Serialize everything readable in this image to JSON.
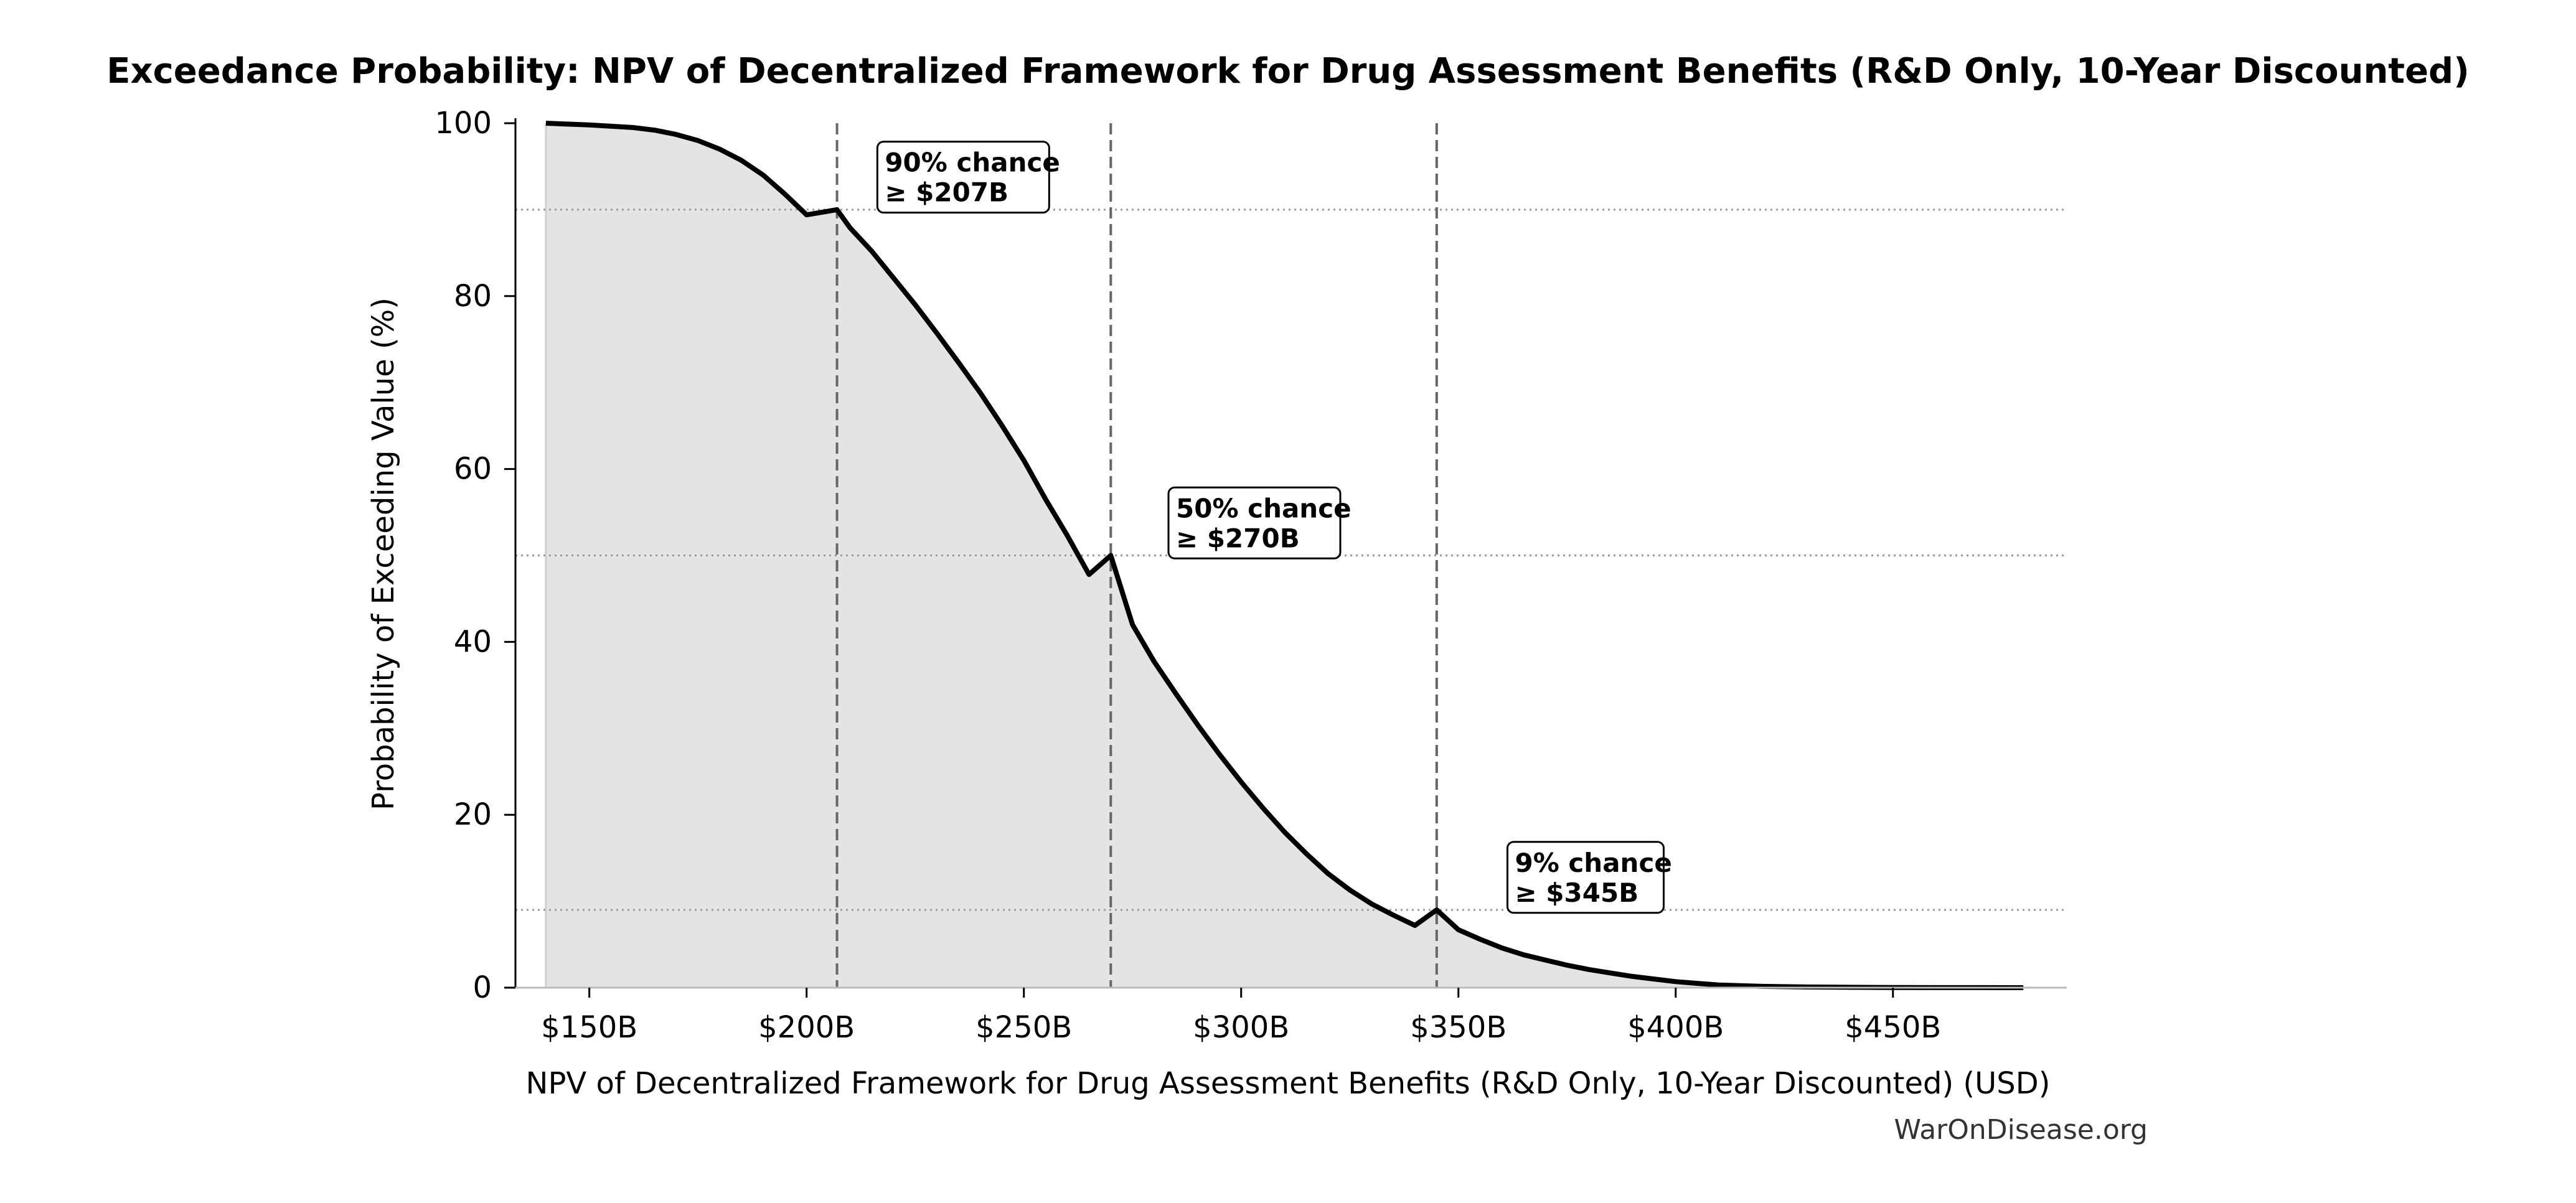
{
  "chart_data": {
    "type": "area",
    "title": "Exceedance Probability: NPV of Decentralized Framework for Drug Assessment Benefits (R&D Only, 10-Year Discounted)",
    "xlabel": "NPV of Decentralized Framework for Drug Assessment Benefits (R&D Only, 10-Year Discounted) (USD)",
    "ylabel": "Probability of Exceeding Value (%)",
    "xlim": [
      133,
      490
    ],
    "ylim": [
      0,
      100
    ],
    "x_unit": "billion USD",
    "x_ticks": [
      150,
      200,
      250,
      300,
      350,
      400,
      450
    ],
    "x_tick_labels": [
      "$150B",
      "$200B",
      "$250B",
      "$300B",
      "$350B",
      "$400B",
      "$450B"
    ],
    "y_ticks": [
      0,
      20,
      40,
      60,
      80,
      100
    ],
    "y_tick_labels": [
      "0",
      "20",
      "40",
      "60",
      "80",
      "100"
    ],
    "grid": false,
    "series": [
      {
        "name": "Exceedance probability",
        "x": [
          140,
          150,
          160,
          165,
          170,
          175,
          180,
          185,
          190,
          195,
          200,
          207,
          210,
          215,
          220,
          225,
          230,
          235,
          240,
          245,
          250,
          255,
          260,
          265,
          270,
          275,
          280,
          285,
          290,
          295,
          300,
          305,
          310,
          315,
          320,
          325,
          330,
          335,
          340,
          345,
          350,
          355,
          360,
          365,
          370,
          375,
          380,
          385,
          390,
          395,
          400,
          405,
          410,
          420,
          430,
          440,
          450,
          460,
          470,
          480
        ],
        "y": [
          100,
          99.8,
          99.5,
          99.2,
          98.7,
          98,
          97,
          95.7,
          94,
          91.8,
          89.4,
          90,
          87.9,
          85.2,
          82.1,
          79,
          75.7,
          72.3,
          68.8,
          65,
          61,
          56.5,
          52.3,
          47.8,
          50,
          42,
          37.7,
          34,
          30.4,
          27,
          23.8,
          20.8,
          18,
          15.5,
          13.2,
          11.3,
          9.7,
          8.4,
          7.2,
          9,
          6.7,
          5.6,
          4.6,
          3.8,
          3.2,
          2.6,
          2.1,
          1.7,
          1.3,
          1,
          0.7,
          0.5,
          0.3,
          0.15,
          0.08,
          0.04,
          0.02,
          0.01,
          0.005,
          0
        ]
      }
    ],
    "annotations": [
      {
        "x": 207,
        "y": 90,
        "line1": "90% chance",
        "line2": "≥ $207B",
        "box_x": 218,
        "box_y": 97
      },
      {
        "x": 270,
        "y": 50,
        "line1": "50% chance",
        "line2": "≥ $270B",
        "box_x": 285,
        "box_y": 57
      },
      {
        "x": 345,
        "y": 9,
        "line1": "9% chance",
        "line2": "≥ $345B",
        "box_x": 363,
        "box_y": 16
      }
    ],
    "watermark": "WarOnDisease.org"
  }
}
